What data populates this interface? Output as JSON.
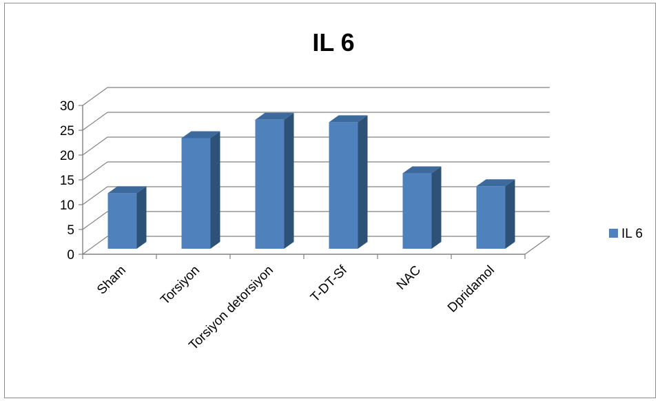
{
  "chart_data": {
    "type": "bar",
    "title": "IL 6",
    "categories": [
      "Sham",
      "Torsiyon",
      "Torsiyon detorsiyon",
      "T-DT-Sf",
      "NAC",
      "Dpridamol"
    ],
    "series": [
      {
        "name": "IL 6",
        "values": [
          11.2,
          22.3,
          26.0,
          25.5,
          15.2,
          12.6
        ]
      }
    ],
    "yticks": [
      "0",
      "5",
      "10",
      "15",
      "20",
      "25",
      "30"
    ],
    "ylim": [
      0,
      30
    ],
    "grid": true,
    "legend_position": "right",
    "style_3d": true,
    "colors": {
      "bar_front": "#4f81bd",
      "bar_side": "#2e5177",
      "bar_top": "#3d6a9c",
      "grid": "#808080"
    }
  }
}
